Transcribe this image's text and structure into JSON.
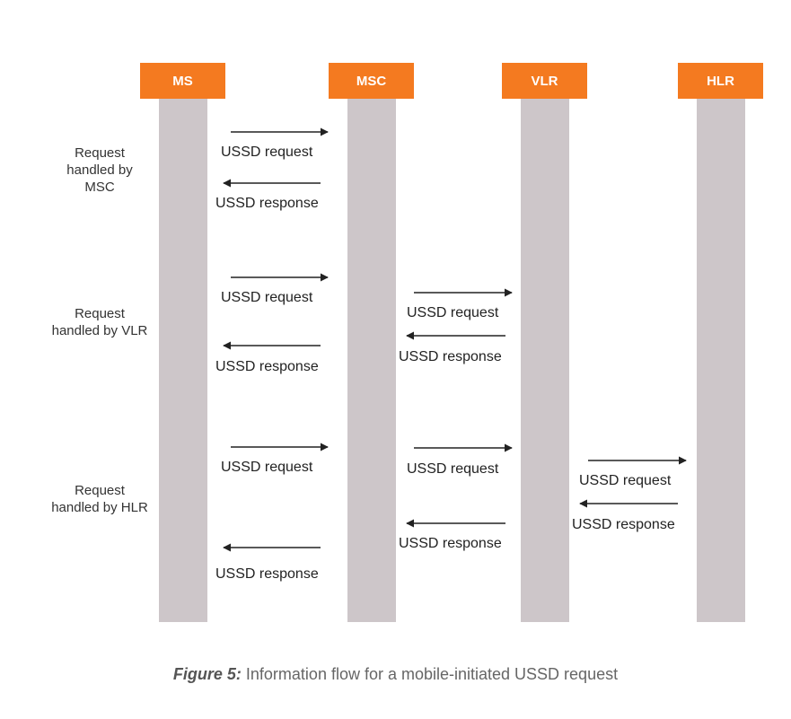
{
  "actors": [
    {
      "id": "ms",
      "label": "MS"
    },
    {
      "id": "msc",
      "label": "MSC"
    },
    {
      "id": "vlr",
      "label": "VLR"
    },
    {
      "id": "hlr",
      "label": "HLR"
    }
  ],
  "cases": [
    {
      "label": "Request handled by MSC"
    },
    {
      "label": "Request handled by VLR"
    },
    {
      "label": "Request handled by HLR"
    }
  ],
  "messages": {
    "msc_req_1": "USSD request",
    "msc_resp_1": "USSD response",
    "vlr_req_1": "USSD request",
    "vlr_req_2": "USSD request",
    "vlr_resp_2": "USSD response",
    "vlr_resp_1": "USSD response",
    "hlr_req_1": "USSD request",
    "hlr_req_2": "USSD request",
    "hlr_req_3": "USSD request",
    "hlr_resp_3": "USSD response",
    "hlr_resp_2": "USSD response",
    "hlr_resp_1": "USSD response"
  },
  "caption": {
    "figure_label": "Figure 5:",
    "text": " Information flow for a mobile-initiated USSD request"
  },
  "colors": {
    "actor": "#f47a20",
    "lifeline": "#cdc6c9",
    "arrow": "#222222"
  }
}
